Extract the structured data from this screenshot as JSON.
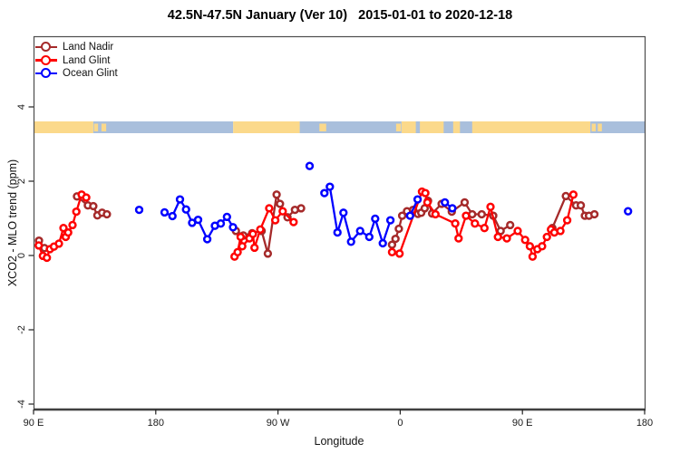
{
  "title": "42.5N-47.5N January (Ver 10)   2015-01-01 to 2020-12-18",
  "legend": {
    "items": [
      {
        "label": "Land Nadir",
        "color": "#A52A2A"
      },
      {
        "label": "Land Glint",
        "color": "#FF0000"
      },
      {
        "label": "Ocean Glint",
        "color": "#0000FF"
      }
    ]
  },
  "chart_data": {
    "type": "scatter",
    "title": "42.5N-47.5N January (Ver 10)   2015-01-01 to 2020-12-18",
    "xlabel": "Longitude",
    "ylabel": "XCO2 - MLO trend (ppm)",
    "xlim": [
      90,
      540
    ],
    "ylim": [
      -4.15,
      5.9
    ],
    "grid": false,
    "legend_position": "top-left",
    "x_ticks": [
      {
        "value": 90,
        "label": "90 E"
      },
      {
        "value": 180,
        "label": "180"
      },
      {
        "value": 270,
        "label": "90 W"
      },
      {
        "value": 360,
        "label": "0"
      },
      {
        "value": 450,
        "label": "90 E"
      },
      {
        "value": 540,
        "label": "180"
      }
    ],
    "y_ticks": [
      {
        "value": -4,
        "label": "-4"
      },
      {
        "value": -2,
        "label": "-2"
      },
      {
        "value": 0,
        "label": "0"
      },
      {
        "value": 2,
        "label": "2"
      },
      {
        "value": 4,
        "label": "4"
      }
    ],
    "map_band": {
      "center_value": 3.45,
      "land_color": "#FBD98B",
      "ocean_color": "#A9BFDC",
      "base_segments": [
        {
          "from": 90,
          "to": 134,
          "type": "land"
        },
        {
          "from": 134,
          "to": 237,
          "type": "ocean"
        },
        {
          "from": 237,
          "to": 286,
          "type": "land"
        },
        {
          "from": 286,
          "to": 361,
          "type": "ocean"
        },
        {
          "from": 361,
          "to": 500,
          "type": "land"
        },
        {
          "from": 500,
          "to": 540,
          "type": "ocean"
        }
      ],
      "patches": [
        {
          "from": 134.5,
          "to": 137.5,
          "type": "land"
        },
        {
          "from": 140,
          "to": 143.5,
          "type": "land"
        },
        {
          "from": 300.5,
          "to": 305.5,
          "type": "land"
        },
        {
          "from": 357,
          "to": 360.5,
          "type": "land"
        },
        {
          "from": 371.5,
          "to": 374.5,
          "type": "ocean"
        },
        {
          "from": 392,
          "to": 399,
          "type": "ocean"
        },
        {
          "from": 404,
          "to": 413,
          "type": "ocean"
        },
        {
          "from": 501,
          "to": 504,
          "type": "land"
        },
        {
          "from": 505.5,
          "to": 508.5,
          "type": "land"
        }
      ]
    },
    "series": [
      {
        "name": "Land Nadir",
        "color": "#A52A2A",
        "segments": [
          [
            [
              94,
              0.4
            ],
            [
              98,
              0.2
            ]
          ],
          [
            [
              122,
              1.59
            ],
            [
              130,
              1.35
            ],
            [
              134,
              1.33
            ],
            [
              137,
              1.08
            ],
            [
              140.5,
              1.15
            ],
            [
              144,
              1.11
            ]
          ],
          [
            [
              239,
              0.66
            ],
            [
              244.5,
              0.54
            ],
            [
              251,
              0.6
            ],
            [
              258,
              0.66
            ],
            [
              262.5,
              0.05
            ],
            [
              269,
              1.64
            ],
            [
              271.5,
              1.39
            ],
            [
              277,
              1.03
            ],
            [
              282.5,
              1.23
            ],
            [
              287,
              1.27
            ]
          ],
          [
            [
              354,
              0.29
            ],
            [
              356.5,
              0.45
            ],
            [
              359,
              0.72
            ],
            [
              361.5,
              1.07
            ],
            [
              365,
              1.19
            ],
            [
              369.5,
              1.23
            ],
            [
              373,
              1.12
            ],
            [
              375.5,
              1.15
            ],
            [
              378,
              1.27
            ],
            [
              380.5,
              1.47
            ],
            [
              383.5,
              1.13
            ],
            [
              390.5,
              1.39
            ],
            [
              398,
              1.18
            ],
            [
              407.5,
              1.43
            ],
            [
              413,
              1.11
            ],
            [
              420,
              1.11
            ],
            [
              428.5,
              1.07
            ],
            [
              434,
              0.66
            ],
            [
              441,
              0.82
            ]
          ],
          [
            [
              472,
              0.74
            ],
            [
              482,
              1.6
            ],
            [
              489.5,
              1.35
            ],
            [
              493,
              1.35
            ],
            [
              496,
              1.07
            ],
            [
              499,
              1.07
            ],
            [
              503,
              1.11
            ]
          ]
        ]
      },
      {
        "name": "Land Glint",
        "color": "#FF0000",
        "segments": [
          [
            [
              93.8,
              0.27
            ],
            [
              96.9,
              -0.01
            ],
            [
              99.8,
              -0.06
            ],
            [
              102,
              0.17
            ],
            [
              105,
              0.24
            ],
            [
              108.7,
              0.32
            ],
            [
              112,
              0.74
            ],
            [
              113.7,
              0.5
            ],
            [
              115.5,
              0.62
            ],
            [
              118.7,
              0.82
            ],
            [
              121.5,
              1.18
            ],
            [
              125.4,
              1.64
            ],
            [
              128.8,
              1.56
            ]
          ],
          [
            [
              238,
              -0.03
            ],
            [
              240.3,
              0.09
            ],
            [
              242.5,
              0.5
            ],
            [
              243.7,
              0.25
            ],
            [
              249,
              0.46
            ],
            [
              251.5,
              0.58
            ],
            [
              252.7,
              0.21
            ],
            [
              257,
              0.7
            ],
            [
              263.5,
              1.27
            ],
            [
              268,
              0.95
            ],
            [
              273.5,
              1.19
            ],
            [
              281.5,
              0.9
            ]
          ],
          [
            [
              354,
              0.09
            ],
            [
              359.5,
              0.05
            ],
            [
              376,
              1.72
            ],
            [
              378.5,
              1.68
            ],
            [
              380,
              1.43
            ],
            [
              386,
              1.11
            ],
            [
              400.5,
              0.86
            ],
            [
              403,
              0.46
            ],
            [
              408.5,
              1.07
            ],
            [
              415,
              0.86
            ],
            [
              422,
              0.74
            ],
            [
              426.5,
              1.31
            ],
            [
              432,
              0.5
            ],
            [
              438.5,
              0.46
            ],
            [
              446.5,
              0.66
            ],
            [
              452,
              0.42
            ],
            [
              455.5,
              0.25
            ],
            [
              457.5,
              -0.03
            ],
            [
              461,
              0.17
            ],
            [
              464.5,
              0.25
            ],
            [
              468,
              0.5
            ],
            [
              471,
              0.7
            ],
            [
              473.5,
              0.62
            ],
            [
              478,
              0.66
            ],
            [
              483,
              0.95
            ],
            [
              487.5,
              1.64
            ]
          ]
        ]
      },
      {
        "name": "Ocean Glint",
        "color": "#0000FF",
        "segments": [
          [
            [
              167.8,
              1.23
            ]
          ],
          [
            [
              186.5,
              1.16
            ],
            [
              192.3,
              1.06
            ],
            [
              197.8,
              1.51
            ],
            [
              202.3,
              1.24
            ],
            [
              206.8,
              0.88
            ],
            [
              211.2,
              0.96
            ],
            [
              217.9,
              0.44
            ],
            [
              223.5,
              0.8
            ],
            [
              227.9,
              0.86
            ],
            [
              232.4,
              1.04
            ],
            [
              236.9,
              0.76
            ]
          ],
          [
            [
              293.3,
              2.41
            ]
          ],
          [
            [
              304.2,
              1.68
            ],
            [
              308.2,
              1.85
            ],
            [
              313.8,
              0.62
            ],
            [
              318.2,
              1.15
            ],
            [
              323.8,
              0.37
            ],
            [
              330.5,
              0.66
            ],
            [
              337.2,
              0.5
            ],
            [
              341.6,
              0.99
            ],
            [
              347.2,
              0.33
            ],
            [
              352.8,
              0.95
            ]
          ],
          [
            [
              367.3,
              1.07
            ],
            [
              372.8,
              1.51
            ]
          ],
          [
            [
              392.9,
              1.43
            ],
            [
              398.4,
              1.27
            ]
          ],
          [
            [
              527.8,
              1.19
            ]
          ]
        ]
      }
    ]
  }
}
